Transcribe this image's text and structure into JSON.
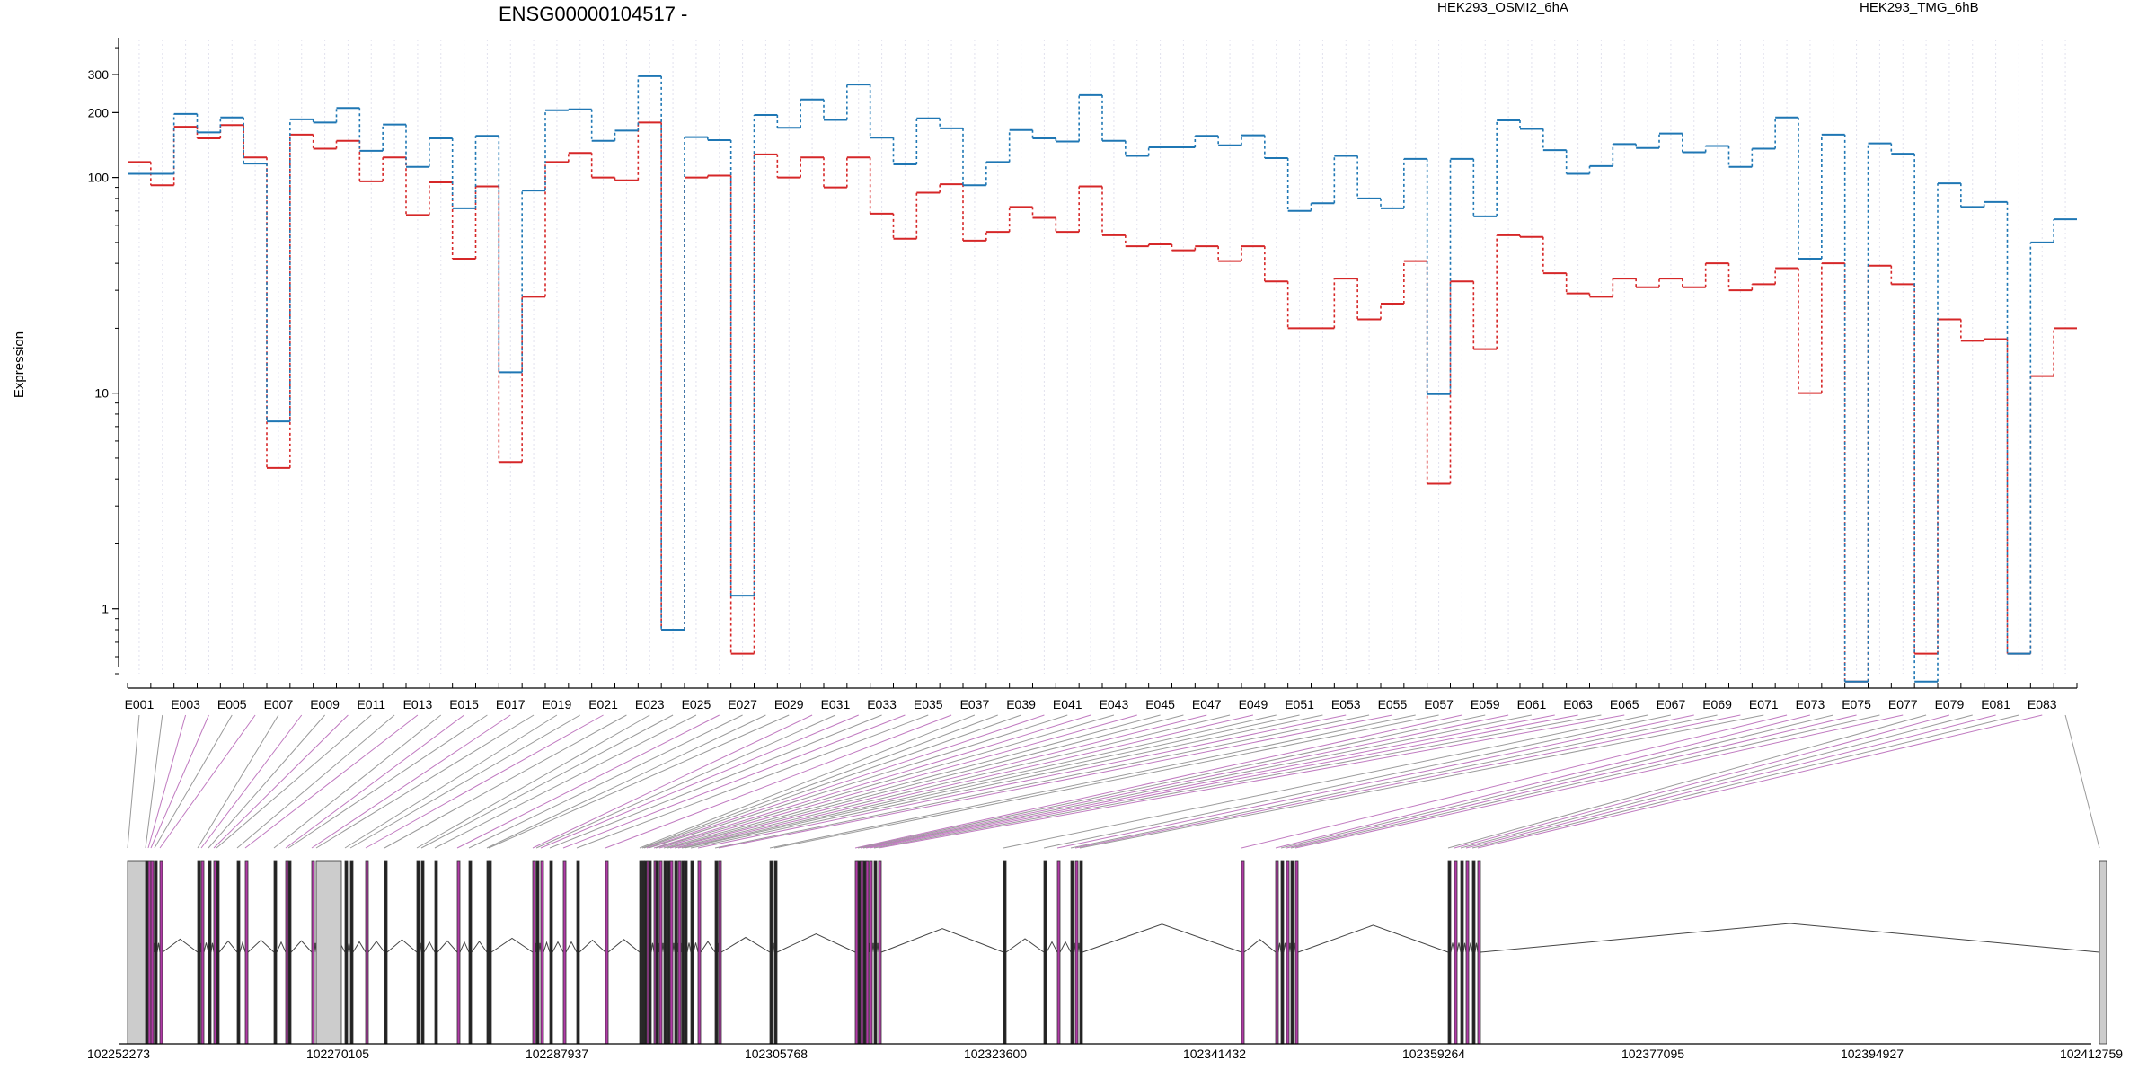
{
  "chart_data": {
    "type": "line",
    "title": "ENSG00000104517 -",
    "ylabel": "Expression",
    "yscale": "log",
    "ylim": [
      0.5,
      420
    ],
    "yticks": [
      "1",
      "10",
      "100",
      "200",
      "300"
    ],
    "ytick_values": [
      1,
      10,
      100,
      200,
      300
    ],
    "x": [
      "E001",
      "E002",
      "E003",
      "E004",
      "E005",
      "E006",
      "E007",
      "E008",
      "E009",
      "E010",
      "E011",
      "E012",
      "E013",
      "E014",
      "E015",
      "E016",
      "E017",
      "E018",
      "E019",
      "E020",
      "E021",
      "E022",
      "E023",
      "E024",
      "E025",
      "E026",
      "E027",
      "E028",
      "E029",
      "E030",
      "E031",
      "E032",
      "E033",
      "E034",
      "E035",
      "E036",
      "E037",
      "E038",
      "E039",
      "E040",
      "E041",
      "E042",
      "E043",
      "E044",
      "E045",
      "E046",
      "E047",
      "E048",
      "E049",
      "E050",
      "E051",
      "E052",
      "E053",
      "E054",
      "E055",
      "E056",
      "E057",
      "E058",
      "E059",
      "E060",
      "E061",
      "E062",
      "E063",
      "E064",
      "E065",
      "E066",
      "E067",
      "E068",
      "E069",
      "E070",
      "E071",
      "E072",
      "E073",
      "E074",
      "E075",
      "E076",
      "E077",
      "E078",
      "E079",
      "E080",
      "E081",
      "E082",
      "E083",
      "E084"
    ],
    "xtick_labels": [
      "E001",
      "E003",
      "E005",
      "E007",
      "E009",
      "E011",
      "E013",
      "E015",
      "E017",
      "E019",
      "E021",
      "E023",
      "E025",
      "E027",
      "E029",
      "E031",
      "E033",
      "E035",
      "E037",
      "E039",
      "E041",
      "E043",
      "E045",
      "E047",
      "E049",
      "E051",
      "E053",
      "E055",
      "E057",
      "E059",
      "E061",
      "E063",
      "E065",
      "E067",
      "E069",
      "E071",
      "E073",
      "E075",
      "E077",
      "E079",
      "E081",
      "E083"
    ],
    "series": [
      {
        "name": "HEK293_OSMI2_6hA",
        "color": "#d62728",
        "values": [
          118,
          92,
          172,
          152,
          175,
          124,
          4.5,
          158,
          136,
          148,
          96,
          124,
          67,
          95,
          42,
          91,
          4.8,
          28,
          118,
          130,
          100,
          97,
          180,
          0.8,
          100,
          102,
          0.62,
          128,
          100,
          124,
          90,
          124,
          68,
          52,
          85,
          93,
          51,
          56,
          73,
          65,
          56,
          91,
          54,
          48,
          49,
          46,
          48,
          41,
          48,
          33,
          20,
          20,
          34,
          22,
          26,
          41,
          3.8,
          33,
          16,
          54,
          53,
          36,
          29,
          28,
          34,
          31,
          34,
          31,
          40,
          30,
          32,
          38,
          10,
          40,
          0.46,
          39,
          32,
          0.62,
          22,
          17.5,
          17.8,
          0.62,
          12,
          20
        ]
      },
      {
        "name": "HEK293_TMG_6hB",
        "color": "#1f77b4",
        "values": [
          104,
          104,
          197,
          162,
          190,
          116,
          7.4,
          186,
          180,
          210,
          133,
          176,
          112,
          152,
          72,
          156,
          12.5,
          87,
          205,
          207,
          148,
          165,
          295,
          0.8,
          154,
          149,
          1.15,
          195,
          170,
          230,
          185,
          270,
          153,
          115,
          188,
          169,
          92,
          118,
          166,
          152,
          147,
          241,
          148,
          126,
          138,
          138,
          156,
          141,
          157,
          123,
          70,
          76,
          126,
          80,
          72,
          122,
          9.9,
          122,
          66,
          184,
          168,
          134,
          104,
          113,
          143,
          137,
          160,
          131,
          140,
          112,
          136,
          190,
          42,
          158,
          0.46,
          144,
          129,
          0.46,
          94,
          73,
          77,
          0.62,
          50,
          64
        ]
      }
    ],
    "legend": [
      "HEK293_OSMI2_6hA",
      "HEK293_TMG_6hB"
    ],
    "legend_placement": "top",
    "grid": "vertical dotted per exon",
    "genomic_axis": {
      "labels": [
        "102252273",
        "102270105",
        "102287937",
        "102305768",
        "102323600",
        "102341432",
        "102359264",
        "102377095",
        "102394927",
        "102412759"
      ],
      "values": [
        102252273,
        102270105,
        102287937,
        102305768,
        102323600,
        102341432,
        102359264,
        102377095,
        102394927,
        102412759
      ]
    },
    "exon_highlight_color": "#b03aa6",
    "exon_noncoding_color": "#cccccc"
  }
}
